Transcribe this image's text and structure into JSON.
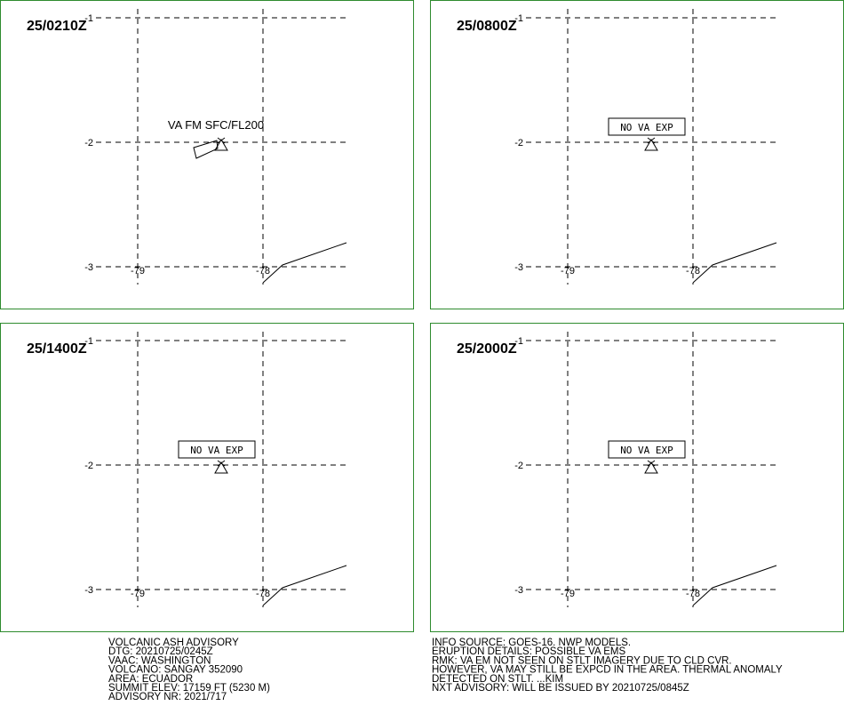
{
  "grid": {
    "lat_labels": [
      "-1",
      "-2",
      "-3"
    ],
    "lon_labels": [
      "-79",
      "-78"
    ]
  },
  "panels": [
    {
      "time": "25/0210Z",
      "annotation": "VA FM SFC/FL200",
      "boxed": false,
      "ash_cloud": true
    },
    {
      "time": "25/0800Z",
      "annotation": "NO VA EXP",
      "boxed": true,
      "ash_cloud": false
    },
    {
      "time": "25/1400Z",
      "annotation": "NO VA EXP",
      "boxed": true,
      "ash_cloud": false
    },
    {
      "time": "25/2000Z",
      "annotation": "NO VA EXP",
      "boxed": true,
      "ash_cloud": false
    }
  ],
  "advisory_left": [
    "VOLCANIC ASH ADVISORY",
    "DTG: 20210725/0245Z",
    "VAAC: WASHINGTON",
    "VOLCANO: SANGAY 352090",
    "AREA: ECUADOR",
    "SUMMIT ELEV: 17159 FT (5230 M)",
    "ADVISORY NR: 2021/717"
  ],
  "advisory_right": [
    "INFO SOURCE: GOES-16. NWP MODELS.",
    "ERUPTION DETAILS: POSSIBLE VA EMS",
    "RMK: VA EM NOT SEEN ON STLT IMAGERY DUE TO CLD CVR.",
    "HOWEVER, VA MAY STILL BE EXPCD IN THE AREA. THERMAL ANOMALY",
    "DETECTED ON STLT. ...KIM",
    "NXT ADVISORY: WILL BE ISSUED BY 20210725/0845Z"
  ]
}
